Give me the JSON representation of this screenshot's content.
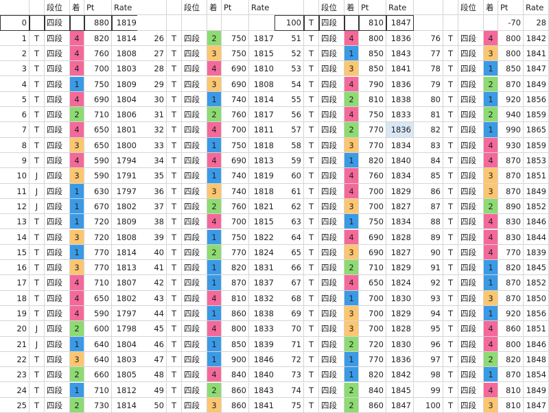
{
  "header": [
    "",
    "",
    "段位",
    "着",
    "Pt",
    "Rate"
  ],
  "summary": {
    "left": [
      "0",
      "",
      "四段",
      "",
      "880",
      "1819"
    ],
    "mid": [
      "100",
      "T",
      "四段",
      "",
      "810",
      "1847"
    ],
    "right": [
      "",
      "",
      "",
      "",
      "-70",
      "28"
    ]
  },
  "colors": {
    "1": "#3b9ae6",
    "2": "#8ddb72",
    "3": "#fcc671",
    "4": "#f5699a",
    "selected": "#d9e7f5"
  },
  "selected_cell": {
    "row": 7,
    "block": 3,
    "field": "Rate"
  },
  "blocks": [
    [
      [
        "1",
        "T",
        "四段",
        "4",
        "820",
        "1814"
      ],
      [
        "2",
        "T",
        "四段",
        "4",
        "760",
        "1808"
      ],
      [
        "3",
        "T",
        "四段",
        "4",
        "700",
        "1803"
      ],
      [
        "4",
        "T",
        "四段",
        "1",
        "750",
        "1809"
      ],
      [
        "5",
        "T",
        "四段",
        "4",
        "690",
        "1804"
      ],
      [
        "6",
        "T",
        "四段",
        "2",
        "710",
        "1806"
      ],
      [
        "7",
        "T",
        "四段",
        "4",
        "650",
        "1801"
      ],
      [
        "8",
        "T",
        "四段",
        "3",
        "650",
        "1800"
      ],
      [
        "9",
        "T",
        "四段",
        "4",
        "590",
        "1794"
      ],
      [
        "10",
        "J",
        "四段",
        "3",
        "590",
        "1791"
      ],
      [
        "11",
        "J",
        "四段",
        "1",
        "630",
        "1797"
      ],
      [
        "12",
        "J",
        "四段",
        "1",
        "670",
        "1802"
      ],
      [
        "13",
        "T",
        "四段",
        "1",
        "720",
        "1809"
      ],
      [
        "14",
        "T",
        "四段",
        "3",
        "720",
        "1808"
      ],
      [
        "15",
        "T",
        "四段",
        "1",
        "770",
        "1814"
      ],
      [
        "16",
        "T",
        "四段",
        "3",
        "770",
        "1813"
      ],
      [
        "17",
        "T",
        "四段",
        "4",
        "710",
        "1807"
      ],
      [
        "18",
        "T",
        "四段",
        "4",
        "650",
        "1802"
      ],
      [
        "19",
        "T",
        "四段",
        "4",
        "590",
        "1797"
      ],
      [
        "20",
        "J",
        "四段",
        "2",
        "600",
        "1798"
      ],
      [
        "21",
        "J",
        "四段",
        "1",
        "640",
        "1804"
      ],
      [
        "22",
        "T",
        "四段",
        "3",
        "640",
        "1803"
      ],
      [
        "23",
        "T",
        "四段",
        "2",
        "660",
        "1805"
      ],
      [
        "24",
        "T",
        "四段",
        "1",
        "710",
        "1812"
      ],
      [
        "25",
        "T",
        "四段",
        "2",
        "730",
        "1814"
      ]
    ],
    [
      [
        "26",
        "T",
        "四段",
        "2",
        "750",
        "1817"
      ],
      [
        "27",
        "T",
        "四段",
        "3",
        "750",
        "1815"
      ],
      [
        "28",
        "T",
        "四段",
        "4",
        "690",
        "1810"
      ],
      [
        "29",
        "T",
        "四段",
        "3",
        "690",
        "1808"
      ],
      [
        "30",
        "T",
        "四段",
        "1",
        "740",
        "1814"
      ],
      [
        "31",
        "T",
        "四段",
        "2",
        "760",
        "1817"
      ],
      [
        "32",
        "T",
        "四段",
        "4",
        "700",
        "1811"
      ],
      [
        "33",
        "T",
        "四段",
        "1",
        "750",
        "1818"
      ],
      [
        "34",
        "T",
        "四段",
        "4",
        "690",
        "1813"
      ],
      [
        "35",
        "T",
        "四段",
        "1",
        "740",
        "1819"
      ],
      [
        "36",
        "T",
        "四段",
        "3",
        "740",
        "1818"
      ],
      [
        "37",
        "T",
        "四段",
        "2",
        "760",
        "1821"
      ],
      [
        "38",
        "T",
        "四段",
        "4",
        "700",
        "1815"
      ],
      [
        "39",
        "T",
        "四段",
        "1",
        "750",
        "1822"
      ],
      [
        "40",
        "T",
        "四段",
        "2",
        "770",
        "1824"
      ],
      [
        "41",
        "T",
        "四段",
        "1",
        "820",
        "1831"
      ],
      [
        "42",
        "T",
        "四段",
        "1",
        "870",
        "1837"
      ],
      [
        "43",
        "T",
        "四段",
        "4",
        "810",
        "1832"
      ],
      [
        "44",
        "T",
        "四段",
        "1",
        "860",
        "1838"
      ],
      [
        "45",
        "T",
        "四段",
        "4",
        "800",
        "1833"
      ],
      [
        "46",
        "T",
        "四段",
        "1",
        "850",
        "1839"
      ],
      [
        "47",
        "T",
        "四段",
        "1",
        "900",
        "1846"
      ],
      [
        "48",
        "T",
        "四段",
        "4",
        "840",
        "1840"
      ],
      [
        "49",
        "T",
        "四段",
        "2",
        "860",
        "1843"
      ],
      [
        "50",
        "T",
        "四段",
        "3",
        "860",
        "1841"
      ]
    ],
    [
      [
        "51",
        "T",
        "四段",
        "4",
        "800",
        "1836"
      ],
      [
        "52",
        "T",
        "四段",
        "1",
        "850",
        "1843"
      ],
      [
        "53",
        "T",
        "四段",
        "3",
        "850",
        "1841"
      ],
      [
        "54",
        "T",
        "四段",
        "4",
        "790",
        "1836"
      ],
      [
        "55",
        "T",
        "四段",
        "2",
        "810",
        "1838"
      ],
      [
        "56",
        "T",
        "四段",
        "4",
        "750",
        "1833"
      ],
      [
        "57",
        "T",
        "四段",
        "2",
        "770",
        "1836"
      ],
      [
        "58",
        "T",
        "四段",
        "3",
        "770",
        "1834"
      ],
      [
        "59",
        "T",
        "四段",
        "1",
        "820",
        "1840"
      ],
      [
        "60",
        "T",
        "四段",
        "4",
        "760",
        "1834"
      ],
      [
        "61",
        "T",
        "四段",
        "4",
        "700",
        "1829"
      ],
      [
        "62",
        "T",
        "四段",
        "3",
        "700",
        "1827"
      ],
      [
        "63",
        "T",
        "四段",
        "1",
        "750",
        "1834"
      ],
      [
        "64",
        "T",
        "四段",
        "4",
        "690",
        "1828"
      ],
      [
        "65",
        "T",
        "四段",
        "3",
        "690",
        "1827"
      ],
      [
        "66",
        "T",
        "四段",
        "2",
        "710",
        "1829"
      ],
      [
        "67",
        "T",
        "四段",
        "4",
        "650",
        "1824"
      ],
      [
        "68",
        "T",
        "四段",
        "1",
        "700",
        "1830"
      ],
      [
        "69",
        "T",
        "四段",
        "3",
        "700",
        "1829"
      ],
      [
        "70",
        "T",
        "四段",
        "3",
        "700",
        "1828"
      ],
      [
        "71",
        "T",
        "四段",
        "2",
        "720",
        "1830"
      ],
      [
        "72",
        "T",
        "四段",
        "1",
        "770",
        "1836"
      ],
      [
        "73",
        "T",
        "四段",
        "1",
        "820",
        "1842"
      ],
      [
        "74",
        "T",
        "四段",
        "2",
        "840",
        "1845"
      ],
      [
        "75",
        "T",
        "四段",
        "2",
        "860",
        "1847"
      ]
    ],
    [
      [
        "76",
        "T",
        "四段",
        "4",
        "800",
        "1842"
      ],
      [
        "77",
        "T",
        "四段",
        "3",
        "800",
        "1841"
      ],
      [
        "78",
        "T",
        "四段",
        "1",
        "850",
        "1847"
      ],
      [
        "79",
        "T",
        "四段",
        "2",
        "870",
        "1849"
      ],
      [
        "80",
        "T",
        "四段",
        "1",
        "920",
        "1856"
      ],
      [
        "81",
        "T",
        "四段",
        "2",
        "940",
        "1859"
      ],
      [
        "82",
        "T",
        "四段",
        "1",
        "990",
        "1865"
      ],
      [
        "83",
        "T",
        "四段",
        "4",
        "930",
        "1859"
      ],
      [
        "84",
        "T",
        "四段",
        "4",
        "870",
        "1853"
      ],
      [
        "85",
        "T",
        "四段",
        "3",
        "870",
        "1851"
      ],
      [
        "86",
        "T",
        "四段",
        "3",
        "870",
        "1849"
      ],
      [
        "87",
        "T",
        "四段",
        "2",
        "890",
        "1852"
      ],
      [
        "88",
        "T",
        "四段",
        "4",
        "830",
        "1846"
      ],
      [
        "89",
        "T",
        "四段",
        "4",
        "830",
        "1844"
      ],
      [
        "90",
        "T",
        "四段",
        "4",
        "770",
        "1839"
      ],
      [
        "91",
        "T",
        "四段",
        "1",
        "820",
        "1845"
      ],
      [
        "92",
        "T",
        "四段",
        "1",
        "870",
        "1852"
      ],
      [
        "93",
        "T",
        "四段",
        "3",
        "870",
        "1850"
      ],
      [
        "94",
        "T",
        "四段",
        "1",
        "920",
        "1856"
      ],
      [
        "95",
        "T",
        "四段",
        "4",
        "860",
        "1851"
      ],
      [
        "96",
        "T",
        "四段",
        "4",
        "800",
        "1846"
      ],
      [
        "97",
        "T",
        "四段",
        "2",
        "820",
        "1848"
      ],
      [
        "98",
        "T",
        "四段",
        "1",
        "870",
        "1854"
      ],
      [
        "99",
        "T",
        "四段",
        "4",
        "810",
        "1849"
      ],
      [
        "100",
        "T",
        "四段",
        "3",
        "810",
        "1847"
      ]
    ]
  ]
}
